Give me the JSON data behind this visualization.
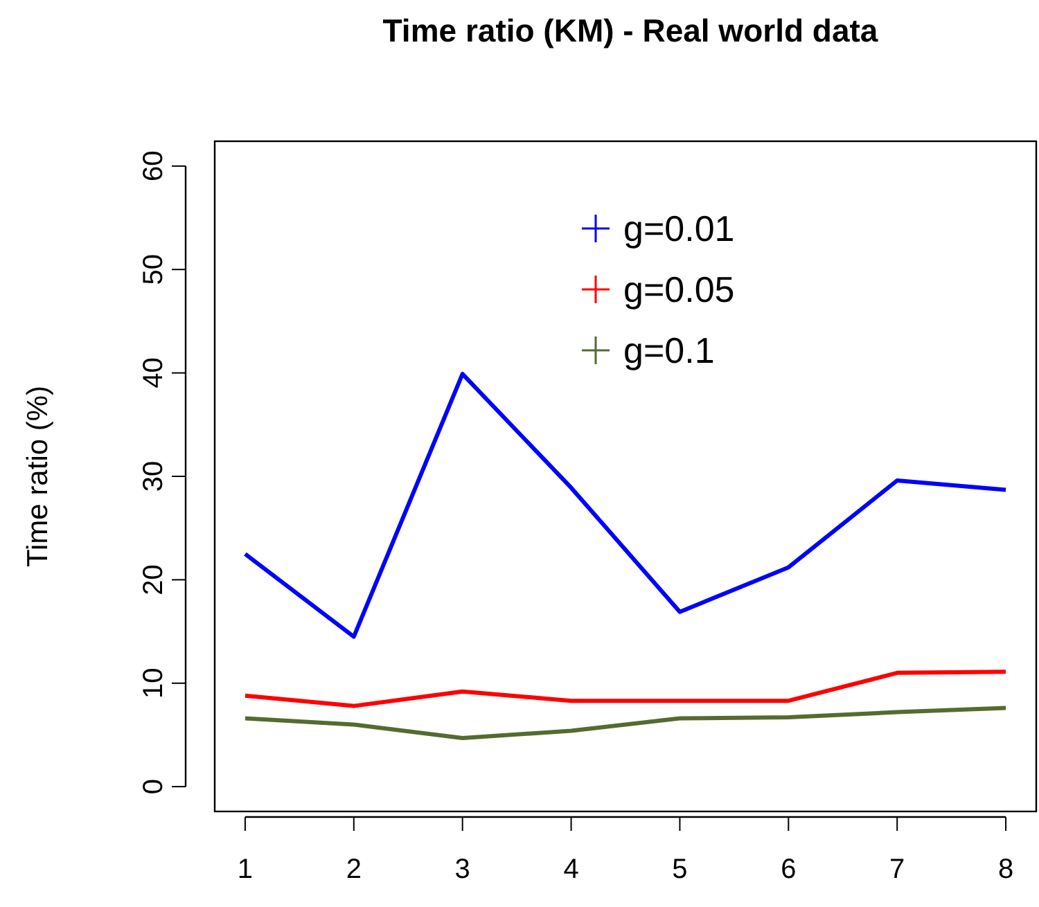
{
  "chart_data": {
    "type": "line",
    "title": "Time ratio (KM) - Real world data",
    "ylabel": "Time ratio (%)",
    "x": [
      1,
      2,
      3,
      4,
      5,
      6,
      7,
      8
    ],
    "xlim": [
      0.72,
      8.28
    ],
    "xticks": [
      1,
      2,
      3,
      4,
      5,
      6,
      7,
      8
    ],
    "ylim": [
      -2.4,
      62.4
    ],
    "yticks": [
      0,
      10,
      20,
      30,
      40,
      50,
      60
    ],
    "series": [
      {
        "name": "g=0.01",
        "color": "#0000ff",
        "values": [
          22.5,
          14.5,
          39.9,
          28.9,
          16.9,
          21.2,
          29.6,
          28.7
        ]
      },
      {
        "name": "g=0.05",
        "color": "#ff0000",
        "values": [
          8.8,
          7.8,
          9.2,
          8.3,
          8.3,
          8.3,
          11.0,
          11.1
        ]
      },
      {
        "name": "g=0.1",
        "color": "#556b2f",
        "values": [
          6.6,
          6.0,
          4.7,
          5.4,
          6.6,
          6.7,
          7.2,
          7.6
        ]
      }
    ],
    "legend": "top",
    "grid": false,
    "marker": "none",
    "line_style": "solid"
  }
}
